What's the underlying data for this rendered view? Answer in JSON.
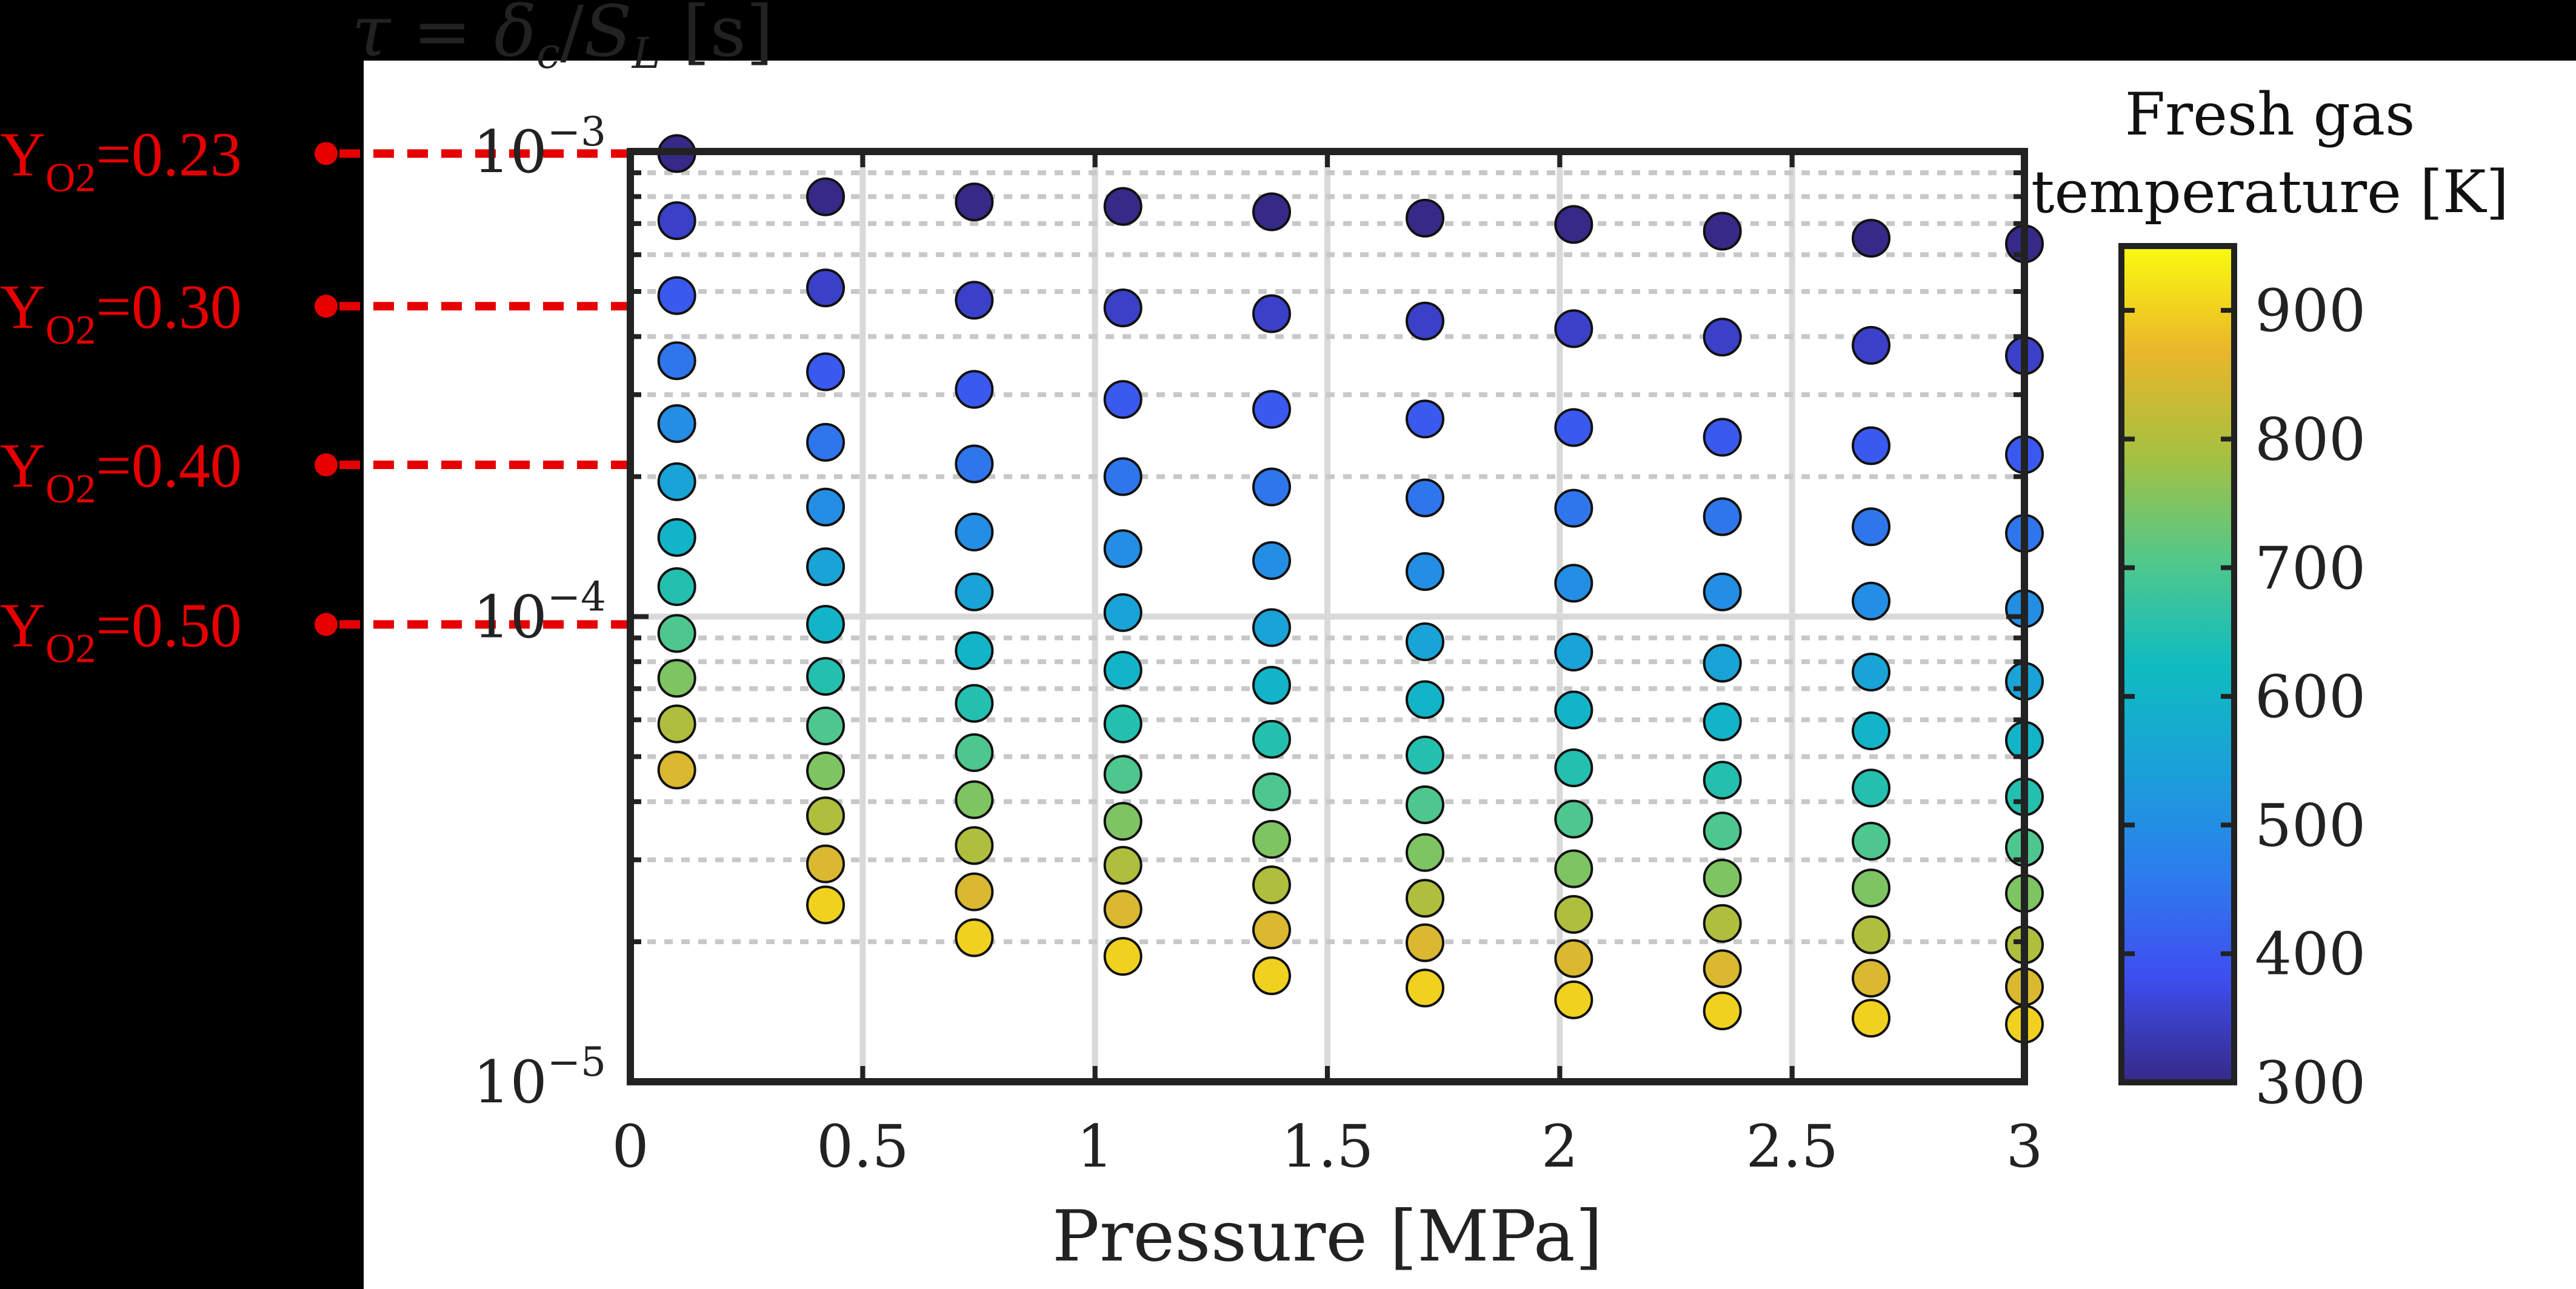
{
  "chart_data": {
    "type": "scatter",
    "title": "",
    "ylabel": "τ = δc/SL [s]",
    "ylabel_parts": {
      "lhs": "τ",
      "eq": " = ",
      "num": "δ",
      "num_sub": "c",
      "slash": "/",
      "den": "S",
      "den_sub": "L",
      "unit": " [s]"
    },
    "xlabel": "Pressure [MPa]",
    "xlim": [
      0,
      3
    ],
    "ylim": [
      1e-05,
      0.001
    ],
    "yscale": "log",
    "x_ticks": [
      "0",
      "0.5",
      "1",
      "1.5",
      "2",
      "2.5",
      "3"
    ],
    "y_ticks": [
      {
        "value": 1e-05,
        "base": "10",
        "exp": "−5"
      },
      {
        "value": 0.0001,
        "base": "10",
        "exp": "−4"
      },
      {
        "value": 0.001,
        "base": "10",
        "exp": "−3"
      }
    ],
    "grid": true,
    "colorbar": {
      "title_line1": "Fresh gas",
      "title_line2": "temperature [K]",
      "range": [
        300,
        950
      ],
      "ticks": [
        "300",
        "400",
        "500",
        "600",
        "700",
        "800",
        "900"
      ],
      "colormap": "parula"
    },
    "pressures": [
      0.1,
      0.42,
      0.74,
      1.06,
      1.38,
      1.71,
      2.03,
      2.35,
      2.67,
      3.0
    ],
    "temperatures": [
      300,
      350,
      400,
      450,
      500,
      550,
      600,
      650,
      700,
      750,
      800,
      850,
      900,
      950
    ],
    "tau": [
      [
        0.00099,
        0.00071,
        0.00049,
        0.000355,
        0.00026,
        0.000195,
        0.000148,
        0.000116,
        9.2e-05,
        7.37e-05,
        5.88e-05,
        4.68e-05,
        null,
        null
      ],
      [
        0.000799,
        0.000509,
        0.000336,
        0.000237,
        0.000172,
        0.000128,
        9.63e-05,
        7.44e-05,
        5.82e-05,
        4.66e-05,
        3.73e-05,
        2.94e-05,
        2.4e-05,
        null
      ],
      [
        0.000779,
        0.000479,
        0.000308,
        0.000213,
        0.000152,
        0.000113,
        8.45e-05,
        6.51e-05,
        5.1e-05,
        4.04e-05,
        3.22e-05,
        2.56e-05,
        2.04e-05,
        null
      ],
      [
        0.000762,
        0.000461,
        0.000293,
        0.0002,
        0.00014,
        0.000102,
        7.67e-05,
        5.88e-05,
        4.58e-05,
        3.63e-05,
        2.92e-05,
        2.35e-05,
        1.86e-05,
        null
      ],
      [
        0.000742,
        0.000448,
        0.000279,
        0.00019,
        0.000132,
        9.47e-05,
        7.12e-05,
        5.45e-05,
        4.2e-05,
        3.32e-05,
        2.65e-05,
        2.12e-05,
        1.69e-05,
        null
      ],
      [
        0.000719,
        0.000432,
        0.000266,
        0.00018,
        0.000125,
        8.83e-05,
        6.63e-05,
        5.04e-05,
        3.94e-05,
        3.11e-05,
        2.48e-05,
        1.99e-05,
        1.59e-05,
        null
      ],
      [
        0.000697,
        0.000416,
        0.000255,
        0.000171,
        0.000118,
        8.39e-05,
        6.3e-05,
        4.73e-05,
        3.67e-05,
        2.87e-05,
        2.29e-05,
        1.84e-05,
        1.5e-05,
        null
      ],
      [
        0.000674,
        0.000399,
        0.000243,
        0.000164,
        0.000113,
        7.94e-05,
        5.94e-05,
        4.45e-05,
        3.46e-05,
        2.74e-05,
        2.19e-05,
        1.75e-05,
        1.42e-05,
        null
      ],
      [
        0.000651,
        0.000383,
        0.000233,
        0.000156,
        0.000108,
        7.6e-05,
        5.68e-05,
        4.28e-05,
        3.29e-05,
        2.61e-05,
        2.07e-05,
        1.67e-05,
        1.37e-05,
        null
      ],
      [
        0.000633,
        0.000364,
        0.000223,
        0.000151,
        0.000104,
        7.26e-05,
        5.42e-05,
        4.1e-05,
        3.19e-05,
        2.54e-05,
        1.97e-05,
        1.6e-05,
        1.33e-05,
        null
      ]
    ],
    "annotations": [
      {
        "text_main": "Y",
        "text_sub": "O2",
        "text_value": "=0.23",
        "tau": 0.00099
      },
      {
        "text_main": "Y",
        "text_sub": "O2",
        "text_value": "=0.30",
        "tau": 0.000465
      },
      {
        "text_main": "Y",
        "text_sub": "O2",
        "text_value": "=0.40",
        "tau": 0.000212
      },
      {
        "text_main": "Y",
        "text_sub": "O2",
        "text_value": "=0.50",
        "tau": 9.62e-05
      }
    ],
    "annotation_color": "#e60000"
  }
}
